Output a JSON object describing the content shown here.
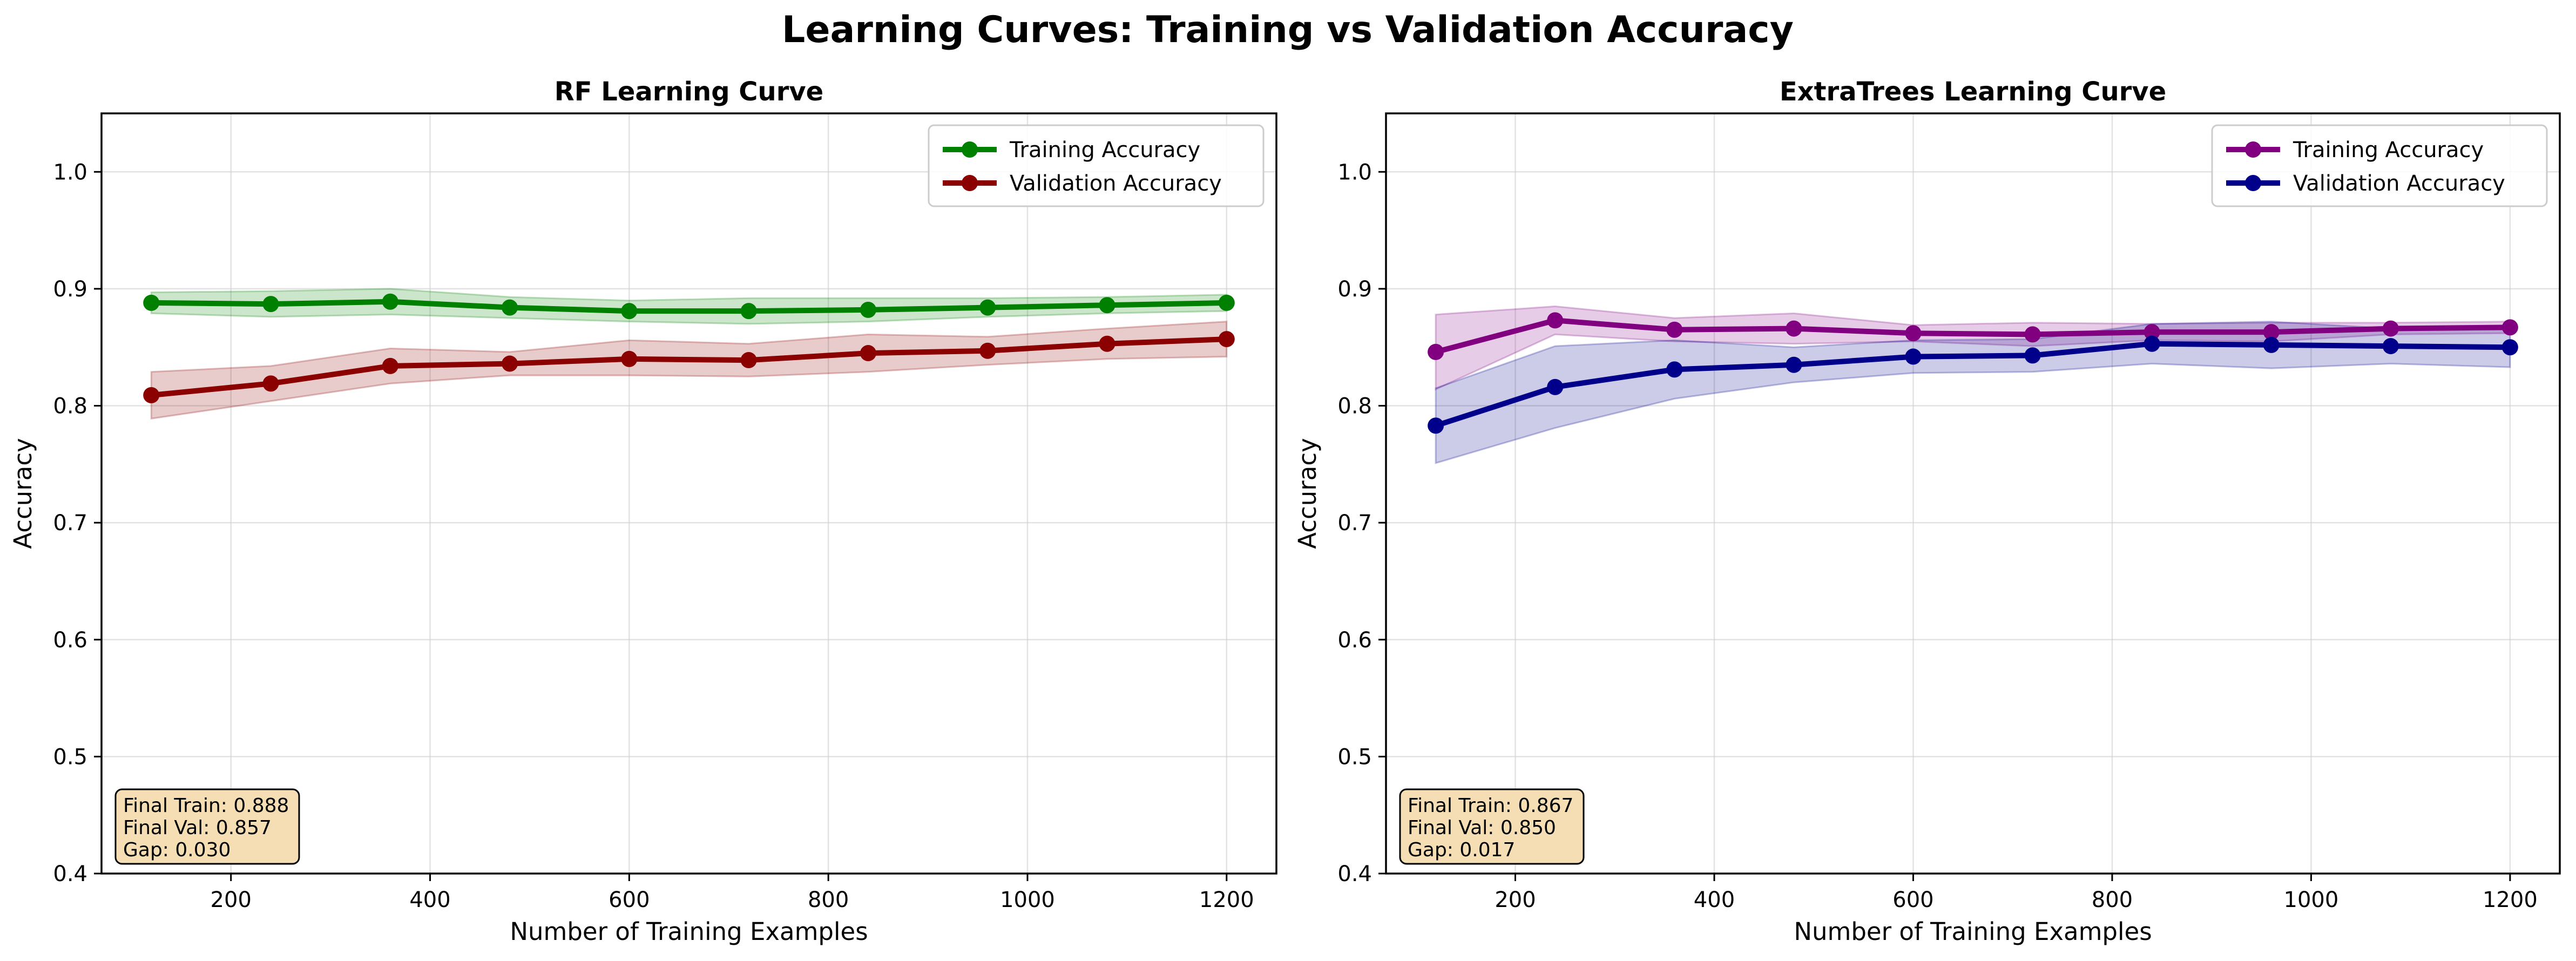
{
  "figure_title": "Learning Curves: Training vs Validation Accuracy",
  "chart_data": [
    {
      "type": "line",
      "title": "RF Learning Curve",
      "xlabel": "Number of Training Examples",
      "ylabel": "Accuracy",
      "xlim": [
        70,
        1250
      ],
      "ylim": [
        0.4,
        1.05
      ],
      "xticks": [
        200,
        400,
        600,
        800,
        1000,
        1200
      ],
      "xtick_labels": [
        "200",
        "400",
        "600",
        "800",
        "1000",
        "1200"
      ],
      "yticks": [
        0.4,
        0.5,
        0.6,
        0.7,
        0.8,
        0.9,
        1.0
      ],
      "ytick_labels": [
        "0.4",
        "0.5",
        "0.6",
        "0.7",
        "0.8",
        "0.9",
        "1.0"
      ],
      "grid": true,
      "legend_position": "top-right",
      "x": [
        120,
        240,
        360,
        480,
        600,
        720,
        840,
        960,
        1080,
        1200
      ],
      "series": [
        {
          "name": "Training Accuracy",
          "color": "#008000",
          "values": [
            0.888,
            0.887,
            0.889,
            0.884,
            0.881,
            0.881,
            0.882,
            0.884,
            0.886,
            0.888
          ],
          "lower": [
            0.879,
            0.876,
            0.878,
            0.875,
            0.872,
            0.87,
            0.872,
            0.876,
            0.879,
            0.881
          ],
          "upper": [
            0.897,
            0.898,
            0.9,
            0.893,
            0.89,
            0.892,
            0.892,
            0.892,
            0.893,
            0.895
          ]
        },
        {
          "name": "Validation Accuracy",
          "color": "#8b0000",
          "values": [
            0.809,
            0.819,
            0.834,
            0.836,
            0.84,
            0.839,
            0.845,
            0.847,
            0.853,
            0.857
          ],
          "lower": [
            0.789,
            0.804,
            0.819,
            0.826,
            0.826,
            0.825,
            0.829,
            0.835,
            0.84,
            0.842
          ],
          "upper": [
            0.829,
            0.834,
            0.849,
            0.846,
            0.856,
            0.853,
            0.861,
            0.859,
            0.866,
            0.872
          ]
        }
      ],
      "stats_box": [
        "Final Train: 0.888",
        "Final Val: 0.857",
        "Gap: 0.030"
      ]
    },
    {
      "type": "line",
      "title": "ExtraTrees Learning Curve",
      "xlabel": "Number of Training Examples",
      "ylabel": "Accuracy",
      "xlim": [
        70,
        1250
      ],
      "ylim": [
        0.4,
        1.05
      ],
      "xticks": [
        200,
        400,
        600,
        800,
        1000,
        1200
      ],
      "xtick_labels": [
        "200",
        "400",
        "600",
        "800",
        "1000",
        "1200"
      ],
      "yticks": [
        0.4,
        0.5,
        0.6,
        0.7,
        0.8,
        0.9,
        1.0
      ],
      "ytick_labels": [
        "0.4",
        "0.5",
        "0.6",
        "0.7",
        "0.8",
        "0.9",
        "1.0"
      ],
      "grid": true,
      "legend_position": "top-right",
      "x": [
        120,
        240,
        360,
        480,
        600,
        720,
        840,
        960,
        1080,
        1200
      ],
      "series": [
        {
          "name": "Training Accuracy",
          "color": "#800080",
          "values": [
            0.846,
            0.873,
            0.865,
            0.866,
            0.862,
            0.861,
            0.863,
            0.863,
            0.866,
            0.867
          ],
          "lower": [
            0.814,
            0.861,
            0.855,
            0.853,
            0.855,
            0.851,
            0.856,
            0.855,
            0.861,
            0.862
          ],
          "upper": [
            0.878,
            0.885,
            0.875,
            0.879,
            0.869,
            0.871,
            0.87,
            0.871,
            0.871,
            0.872
          ]
        },
        {
          "name": "Validation Accuracy",
          "color": "#00008b",
          "values": [
            0.783,
            0.816,
            0.831,
            0.835,
            0.842,
            0.843,
            0.853,
            0.852,
            0.851,
            0.85
          ],
          "lower": [
            0.751,
            0.781,
            0.806,
            0.82,
            0.828,
            0.829,
            0.836,
            0.832,
            0.836,
            0.833
          ],
          "upper": [
            0.815,
            0.851,
            0.856,
            0.85,
            0.856,
            0.857,
            0.87,
            0.872,
            0.866,
            0.867
          ]
        }
      ],
      "stats_box": [
        "Final Train: 0.867",
        "Final Val: 0.850",
        "Gap: 0.017"
      ]
    }
  ]
}
